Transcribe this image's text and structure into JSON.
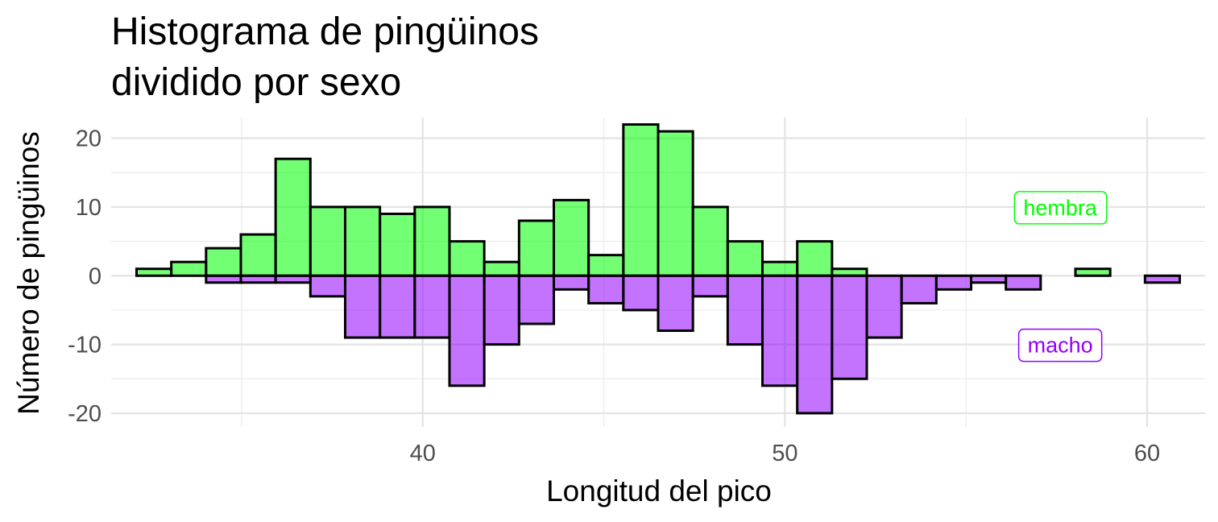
{
  "chart_data": {
    "type": "bar",
    "title": [
      "Histograma de pingüinos",
      "dividido por sexo"
    ],
    "xlabel": "Longitud del pico",
    "ylabel": "Número de pingüinos",
    "xlim": [
      31.4,
      61.6
    ],
    "ylim": [
      -22,
      23
    ],
    "xticks": [
      40,
      50,
      60
    ],
    "yticks": [
      -20,
      -10,
      0,
      10,
      20
    ],
    "bin_width": 0.96,
    "bin_start": 32.1,
    "series": [
      {
        "name": "hembra",
        "color": "#00ff00",
        "sign": 1,
        "values": [
          1,
          2,
          4,
          6,
          17,
          10,
          10,
          9,
          10,
          5,
          2,
          8,
          11,
          3,
          22,
          21,
          10,
          5,
          2,
          5,
          1,
          0,
          0,
          0,
          0,
          0,
          0,
          1,
          0,
          0
        ]
      },
      {
        "name": "macho",
        "color": "#9400ff",
        "sign": -1,
        "values": [
          0,
          0,
          1,
          1,
          1,
          3,
          9,
          9,
          9,
          16,
          10,
          7,
          2,
          4,
          5,
          8,
          3,
          10,
          16,
          20,
          15,
          9,
          4,
          2,
          1,
          2,
          0,
          0,
          0,
          1
        ]
      }
    ],
    "annotations": [
      {
        "label": "hembra",
        "x": 57.6,
        "y": 10,
        "color": "#00ff00"
      },
      {
        "label": "macho",
        "x": 57.6,
        "y": -10,
        "color": "#9400ff"
      }
    ]
  }
}
